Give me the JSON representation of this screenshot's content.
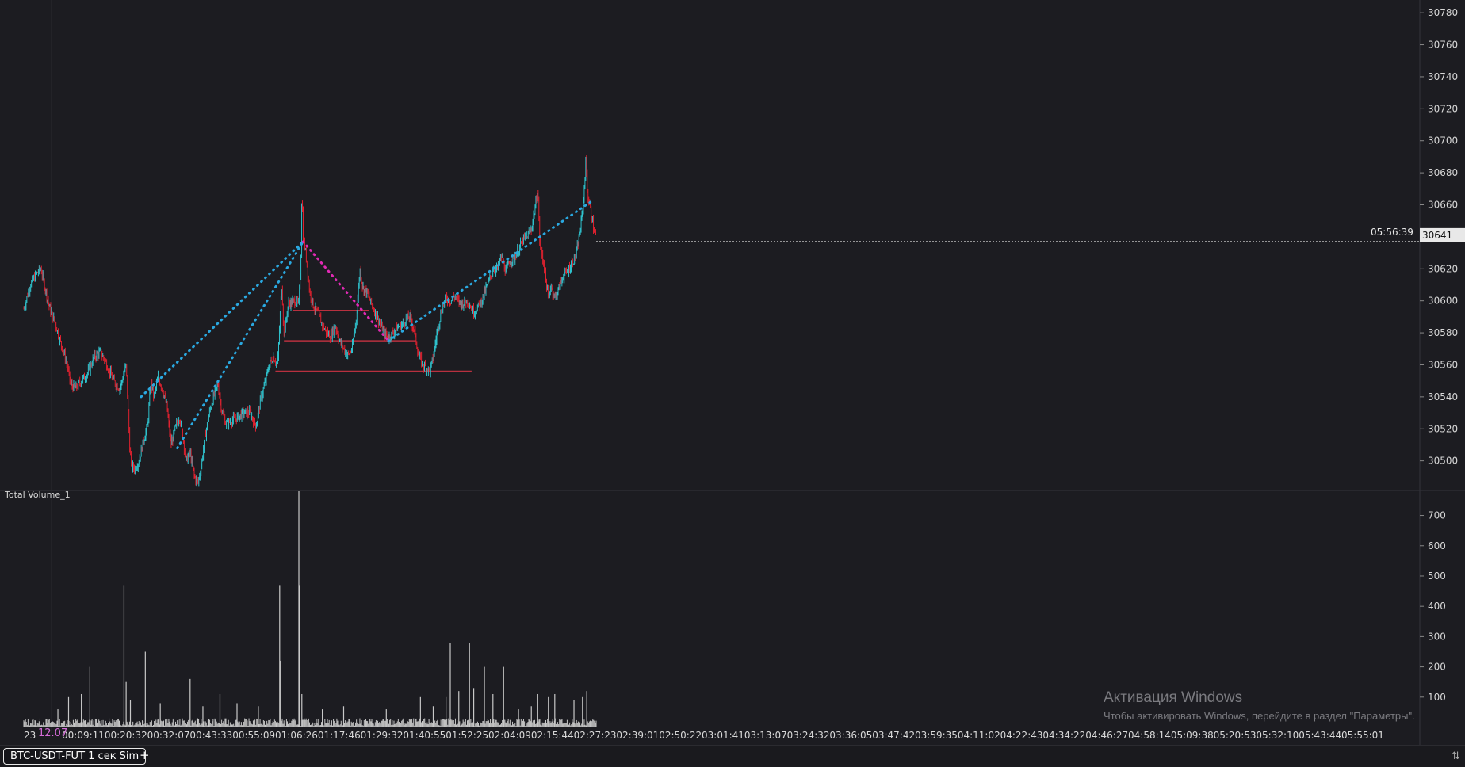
{
  "colors": {
    "background": "#1c1c21",
    "up": "#2fc3ce",
    "down": "#e0212f",
    "trend_blue": "#2aa8e0",
    "trend_pink": "#e02ab4",
    "support": "#b8303f",
    "volume": "#c8c8c8",
    "axis_text": "#d8d8d8",
    "date_label": "#d46bd8"
  },
  "chart_data": [
    {
      "type": "candlestick",
      "symbol": "BTC-USDT-FUT",
      "ylim": [
        30482,
        30788
      ],
      "y_ticks": [
        30500,
        30520,
        30540,
        30560,
        30580,
        30600,
        30620,
        30640,
        30660,
        30680,
        30700,
        30720,
        30740,
        30760,
        30780
      ],
      "last_price": {
        "value": "30641",
        "time": "05:56:39"
      },
      "price_path": [
        [
          0,
          30595
        ],
        [
          0.15,
          30610
        ],
        [
          0.3,
          30617
        ],
        [
          0.4,
          30620
        ],
        [
          0.5,
          30608
        ],
        [
          0.6,
          30596
        ],
        [
          0.75,
          30585
        ],
        [
          0.85,
          30575
        ],
        [
          1.0,
          30562
        ],
        [
          1.1,
          30548
        ],
        [
          1.2,
          30545
        ],
        [
          1.35,
          30550
        ],
        [
          1.5,
          30555
        ],
        [
          1.65,
          30565
        ],
        [
          1.8,
          30568
        ],
        [
          1.95,
          30560
        ],
        [
          2.1,
          30550
        ],
        [
          2.25,
          30545
        ],
        [
          2.4,
          30560
        ],
        [
          2.48,
          30510
        ],
        [
          2.52,
          30497
        ],
        [
          2.6,
          30495
        ],
        [
          2.7,
          30500
        ],
        [
          2.8,
          30512
        ],
        [
          2.9,
          30522
        ],
        [
          2.98,
          30550
        ],
        [
          3.05,
          30540
        ],
        [
          3.15,
          30552
        ],
        [
          3.25,
          30545
        ],
        [
          3.35,
          30535
        ],
        [
          3.45,
          30510
        ],
        [
          3.55,
          30520
        ],
        [
          3.65,
          30528
        ],
        [
          3.75,
          30512
        ],
        [
          3.8,
          30500
        ],
        [
          3.9,
          30505
        ],
        [
          4.0,
          30490
        ],
        [
          4.08,
          30486
        ],
        [
          4.15,
          30495
        ],
        [
          4.25,
          30515
        ],
        [
          4.35,
          30530
        ],
        [
          4.45,
          30540
        ],
        [
          4.55,
          30548
        ],
        [
          4.65,
          30530
        ],
        [
          4.75,
          30523
        ],
        [
          4.85,
          30525
        ],
        [
          5.0,
          30527
        ],
        [
          5.15,
          30530
        ],
        [
          5.3,
          30530
        ],
        [
          5.45,
          30522
        ],
        [
          5.55,
          30538
        ],
        [
          5.65,
          30548
        ],
        [
          5.75,
          30560
        ],
        [
          5.85,
          30565
        ],
        [
          5.95,
          30560
        ],
        [
          6.02,
          30595
        ],
        [
          6.05,
          30610
        ],
        [
          6.1,
          30578
        ],
        [
          6.2,
          30598
        ],
        [
          6.35,
          30600
        ],
        [
          6.45,
          30598
        ],
        [
          6.5,
          30630
        ],
        [
          6.52,
          30670
        ],
        [
          6.55,
          30640
        ],
        [
          6.62,
          30628
        ],
        [
          6.7,
          30606
        ],
        [
          6.8,
          30596
        ],
        [
          6.9,
          30592
        ],
        [
          7.0,
          30585
        ],
        [
          7.1,
          30580
        ],
        [
          7.2,
          30578
        ],
        [
          7.3,
          30585
        ],
        [
          7.4,
          30575
        ],
        [
          7.5,
          30570
        ],
        [
          7.6,
          30566
        ],
        [
          7.7,
          30570
        ],
        [
          7.8,
          30590
        ],
        [
          7.88,
          30620
        ],
        [
          7.95,
          30608
        ],
        [
          8.05,
          30605
        ],
        [
          8.15,
          30598
        ],
        [
          8.25,
          30592
        ],
        [
          8.35,
          30586
        ],
        [
          8.45,
          30580
        ],
        [
          8.55,
          30577
        ],
        [
          8.65,
          30580
        ],
        [
          8.75,
          30583
        ],
        [
          8.85,
          30585
        ],
        [
          8.95,
          30588
        ],
        [
          9.05,
          30590
        ],
        [
          9.15,
          30582
        ],
        [
          9.25,
          30567
        ],
        [
          9.35,
          30560
        ],
        [
          9.45,
          30558
        ],
        [
          9.52,
          30556
        ],
        [
          9.6,
          30565
        ],
        [
          9.7,
          30582
        ],
        [
          9.8,
          30595
        ],
        [
          9.9,
          30602
        ],
        [
          10.0,
          30600
        ],
        [
          10.1,
          30603
        ],
        [
          10.25,
          30598
        ],
        [
          10.4,
          30600
        ],
        [
          10.55,
          30593
        ],
        [
          10.7,
          30598
        ],
        [
          10.8,
          30605
        ],
        [
          10.9,
          30612
        ],
        [
          11.0,
          30620
        ],
        [
          11.1,
          30620
        ],
        [
          11.2,
          30628
        ],
        [
          11.3,
          30618
        ],
        [
          11.4,
          30625
        ],
        [
          11.5,
          30627
        ],
        [
          11.6,
          30632
        ],
        [
          11.7,
          30638
        ],
        [
          11.8,
          30640
        ],
        [
          11.9,
          30645
        ],
        [
          12.0,
          30660
        ],
        [
          12.05,
          30670
        ],
        [
          12.1,
          30635
        ],
        [
          12.2,
          30622
        ],
        [
          12.3,
          30600
        ],
        [
          12.35,
          30610
        ],
        [
          12.45,
          30602
        ],
        [
          12.55,
          30608
        ],
        [
          12.65,
          30616
        ],
        [
          12.75,
          30618
        ],
        [
          12.85,
          30624
        ],
        [
          12.95,
          30628
        ],
        [
          13.05,
          30645
        ],
        [
          13.12,
          30662
        ],
        [
          13.18,
          30688
        ],
        [
          13.22,
          30665
        ],
        [
          13.3,
          30655
        ],
        [
          13.37,
          30644
        ],
        [
          13.42,
          30641
        ]
      ]
    },
    {
      "type": "bar",
      "title": "Total Volume_1",
      "ylim": [
        0,
        780
      ],
      "y_ticks": [
        100,
        200,
        300,
        400,
        500,
        600,
        700
      ],
      "peaks": [
        [
          0.8,
          60
        ],
        [
          1.05,
          100
        ],
        [
          1.35,
          110
        ],
        [
          1.55,
          200
        ],
        [
          2.35,
          470
        ],
        [
          2.4,
          150
        ],
        [
          2.5,
          90
        ],
        [
          2.85,
          250
        ],
        [
          3.2,
          80
        ],
        [
          3.9,
          160
        ],
        [
          4.2,
          70
        ],
        [
          4.6,
          110
        ],
        [
          5.0,
          80
        ],
        [
          5.5,
          70
        ],
        [
          6.0,
          470
        ],
        [
          6.02,
          220
        ],
        [
          6.45,
          780
        ],
        [
          6.47,
          470
        ],
        [
          6.52,
          110
        ],
        [
          7.0,
          60
        ],
        [
          7.5,
          70
        ],
        [
          8.5,
          60
        ],
        [
          9.3,
          100
        ],
        [
          9.6,
          70
        ],
        [
          9.9,
          100
        ],
        [
          10.0,
          280
        ],
        [
          10.2,
          120
        ],
        [
          10.45,
          280
        ],
        [
          10.55,
          130
        ],
        [
          10.8,
          200
        ],
        [
          11.0,
          110
        ],
        [
          11.25,
          200
        ],
        [
          11.6,
          60
        ],
        [
          11.9,
          70
        ],
        [
          12.05,
          110
        ],
        [
          12.3,
          100
        ],
        [
          12.45,
          110
        ],
        [
          12.9,
          90
        ],
        [
          13.1,
          100
        ],
        [
          13.2,
          120
        ]
      ]
    }
  ],
  "x_axis": {
    "labels": [
      "23",
      "00:09:11",
      "00:20:32",
      "00:32:07",
      "00:43:33",
      "00:55:09",
      "01:06:26",
      "01:17:46",
      "01:29:32",
      "01:40:55",
      "01:52:25",
      "02:04:09",
      "02:15:44",
      "02:27:23",
      "02:39:01",
      "02:50:22",
      "03:01:41",
      "03:13:07",
      "03:24:32",
      "03:36:05",
      "03:47:42",
      "03:59:35",
      "04:11:02",
      "04:22:43",
      "04:34:22",
      "04:46:27",
      "04:58:14",
      "05:09:38",
      "05:20:53",
      "05:32:10",
      "05:43:44",
      "05:55:01"
    ],
    "date_label": "12.07"
  },
  "trend_lines": [
    {
      "color": "blue",
      "from": [
        2.75,
        30540
      ],
      "to": [
        6.55,
        30637
      ]
    },
    {
      "color": "blue",
      "from": [
        3.6,
        30508
      ],
      "to": [
        6.55,
        30637
      ]
    },
    {
      "color": "pink",
      "from": [
        6.55,
        30637
      ],
      "to": [
        8.55,
        30575
      ]
    },
    {
      "color": "blue",
      "from": [
        8.55,
        30575
      ],
      "to": [
        13.3,
        30662
      ]
    }
  ],
  "support_lines": [
    {
      "from": 6.3,
      "to": 8.1,
      "price": 30594
    },
    {
      "from": 6.1,
      "to": 9.2,
      "price": 30575
    },
    {
      "from": 5.9,
      "to": 10.5,
      "price": 30556
    }
  ],
  "bottom_bar": {
    "instrument_tab": "BTC-USDT-FUT 1 сек Sim",
    "add_tab": "+"
  },
  "watermark": {
    "line1": "Активация Windows",
    "line2": "Чтобы активировать Windows, перейдите в раздел \"Параметры\"."
  }
}
